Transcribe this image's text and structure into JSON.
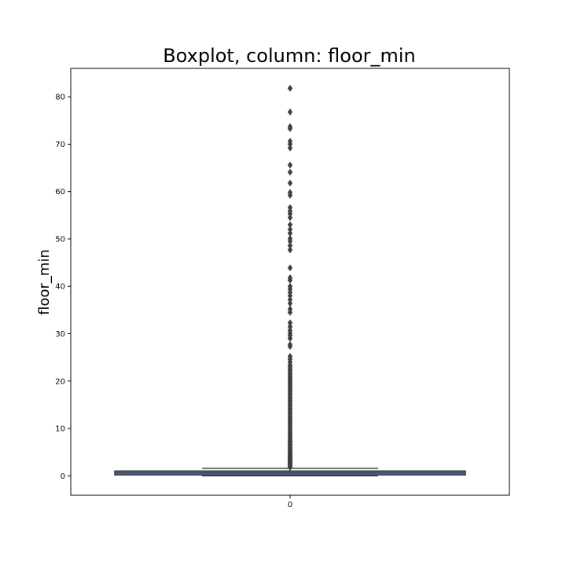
{
  "chart_data": {
    "type": "box",
    "title": "Boxplot, column: floor_min",
    "xlabel": "",
    "ylabel": "floor_min",
    "categories": [
      "0"
    ],
    "ylim": [
      -4.1,
      86
    ],
    "yticks": [
      0,
      10,
      20,
      30,
      40,
      50,
      60,
      70,
      80
    ],
    "grid": false,
    "box": {
      "category": "0",
      "q1": 0.3,
      "median": 0.6,
      "q3": 0.9,
      "whisker_low": 0,
      "whisker_high": 1.6,
      "fill_color": "#4c72b0",
      "line_color": "#3f3f3f"
    },
    "outliers": [
      1.8,
      2.0,
      2.2,
      2.4,
      2.6,
      2.8,
      3.0,
      3.2,
      3.4,
      3.6,
      3.8,
      4.0,
      4.2,
      4.4,
      4.6,
      4.8,
      5.0,
      5.2,
      5.5,
      5.8,
      6.0,
      6.3,
      6.6,
      7.0,
      7.3,
      7.6,
      8.0,
      8.3,
      8.7,
      9.0,
      9.4,
      9.8,
      10.2,
      10.6,
      11.0,
      11.4,
      11.8,
      12.2,
      12.6,
      13.0,
      13.4,
      13.8,
      14.2,
      14.6,
      15.0,
      15.4,
      15.8,
      16.2,
      16.6,
      17.0,
      17.4,
      17.8,
      18.2,
      18.6,
      19.0,
      19.4,
      19.8,
      20.2,
      20.6,
      21.0,
      21.4,
      21.8,
      22.2,
      22.6,
      23.0,
      23.4,
      24.0,
      24.6,
      25.2,
      27.3,
      27.7,
      29.0,
      29.6,
      30.1,
      30.7,
      31.5,
      32.3,
      34.5,
      35.2,
      36.4,
      37.2,
      38.0,
      38.7,
      39.4,
      40.0,
      41.3,
      41.8,
      43.9,
      47.7,
      48.6,
      49.5,
      50.1,
      51.2,
      52.0,
      53.0,
      54.5,
      55.3,
      55.9,
      56.6,
      59.2,
      59.8,
      61.8,
      64.1,
      65.6,
      69.2,
      70.0,
      70.6,
      73.3,
      73.7,
      76.8,
      81.8
    ]
  }
}
